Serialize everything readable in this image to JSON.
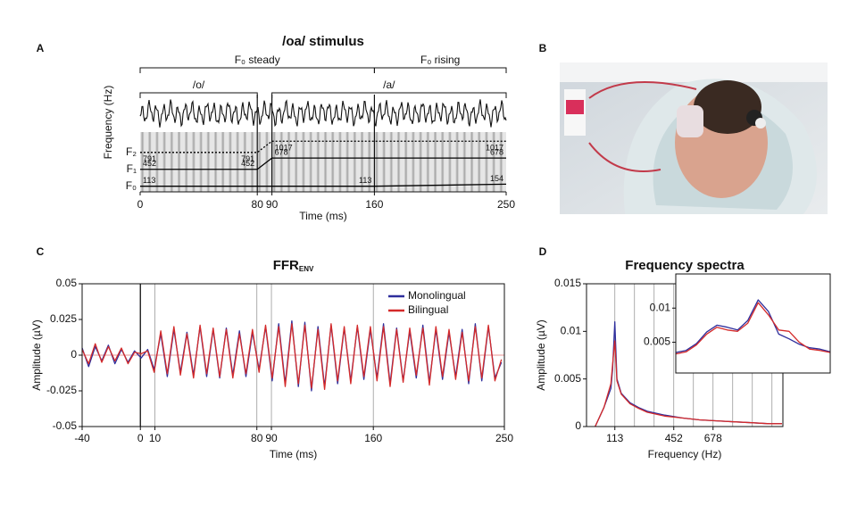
{
  "panel_labels": [
    "A",
    "B",
    "C",
    "D"
  ],
  "chart_data": [
    {
      "type": "formant",
      "title": "/oa/ stimulus",
      "xlabel": "Time (ms)",
      "ylabel": "Frequency (Hz)",
      "xlim": [
        0,
        250
      ],
      "xticks": [
        0,
        80,
        90,
        160,
        250
      ],
      "ylim": [
        0,
        1200
      ],
      "vlines": [
        80,
        90,
        160
      ],
      "brackets": [
        {
          "label": "F₀ steady",
          "from": 0,
          "to": 160
        },
        {
          "label": "F₀ rising",
          "from": 160,
          "to": 250
        }
      ],
      "segments": [
        {
          "label": "/o/",
          "from": 0,
          "to": 80
        },
        {
          "label": "/a/",
          "from": 90,
          "to": 250
        }
      ],
      "series": [
        {
          "name": "F₀",
          "color": "#000000",
          "x": [
            0,
            160,
            250
          ],
          "values": [
            113,
            113,
            154
          ]
        },
        {
          "name": "F₁",
          "color": "#000000",
          "x": [
            0,
            80,
            90,
            250
          ],
          "values": [
            452,
            452,
            678,
            678
          ]
        },
        {
          "name": "F₂",
          "color": "#000000",
          "dashed": true,
          "x": [
            0,
            80,
            90,
            250
          ],
          "values": [
            791,
            791,
            1017,
            1017
          ]
        }
      ]
    },
    {
      "type": "line",
      "title": "FFR",
      "title_sub": "ENV",
      "xlabel": "Time (ms)",
      "ylabel": "Amplitude (µV)",
      "xlim": [
        -40,
        250
      ],
      "xticks": [
        -40,
        0,
        10,
        80,
        90,
        160,
        250
      ],
      "ylim": [
        -0.05,
        0.05
      ],
      "yticks": [
        -0.05,
        -0.025,
        0,
        0.025,
        0.05
      ],
      "vlines": [
        0,
        10,
        80,
        90,
        160
      ],
      "hline": 0,
      "hline_color": "#e07070",
      "legend": "upper right",
      "x": [
        -40,
        -35.5,
        -31,
        -26.5,
        -22,
        -17.5,
        -13,
        -8.5,
        -4,
        0.5,
        5,
        9.5,
        14,
        18.5,
        23,
        27.5,
        32,
        36.5,
        41,
        45.5,
        50,
        54.5,
        59,
        63.5,
        68,
        72.5,
        77,
        81.5,
        86,
        90.5,
        95,
        99.5,
        104,
        108.5,
        113,
        117.5,
        122,
        126.5,
        131,
        135.5,
        140,
        144.5,
        149,
        153.5,
        158,
        162.5,
        167,
        171.5,
        176,
        180.5,
        185,
        189.5,
        194,
        198.5,
        203,
        207.5,
        212,
        216.5,
        221,
        225.5,
        230,
        234.5,
        239,
        243.5,
        248
      ],
      "series": [
        {
          "name": "Monolingual",
          "color": "#2e2e9c",
          "values": [
            0.005,
            -0.008,
            0.006,
            -0.004,
            0.007,
            -0.006,
            0.004,
            -0.005,
            0.003,
            -0.002,
            0.004,
            -0.01,
            0.015,
            -0.015,
            0.018,
            -0.012,
            0.016,
            -0.014,
            0.02,
            -0.015,
            0.018,
            -0.016,
            0.019,
            -0.014,
            0.017,
            -0.015,
            0.016,
            -0.01,
            0.02,
            -0.018,
            0.022,
            -0.02,
            0.024,
            -0.022,
            0.023,
            -0.025,
            0.02,
            -0.022,
            0.021,
            -0.02,
            0.019,
            -0.018,
            0.02,
            -0.017,
            0.018,
            -0.016,
            0.022,
            -0.02,
            0.019,
            -0.018,
            0.017,
            -0.016,
            0.021,
            -0.019,
            0.018,
            -0.017,
            0.016,
            -0.015,
            0.018,
            -0.02,
            0.022,
            -0.018,
            0.02,
            -0.016,
            -0.005
          ]
        },
        {
          "name": "Bilingual",
          "color": "#d42a2a",
          "values": [
            0.004,
            -0.006,
            0.008,
            -0.005,
            0.006,
            -0.004,
            0.005,
            -0.006,
            0.002,
            0.001,
            0.003,
            -0.012,
            0.017,
            -0.013,
            0.02,
            -0.014,
            0.015,
            -0.016,
            0.021,
            -0.013,
            0.019,
            -0.015,
            0.018,
            -0.016,
            0.015,
            -0.013,
            0.018,
            -0.012,
            0.021,
            -0.016,
            0.02,
            -0.022,
            0.022,
            -0.02,
            0.021,
            -0.023,
            0.018,
            -0.024,
            0.022,
            -0.018,
            0.02,
            -0.02,
            0.021,
            -0.015,
            0.02,
            -0.018,
            0.02,
            -0.022,
            0.018,
            -0.019,
            0.019,
            -0.014,
            0.019,
            -0.021,
            0.02,
            -0.015,
            0.018,
            -0.017,
            0.016,
            -0.018,
            0.02,
            -0.016,
            0.021,
            -0.018,
            -0.003
          ]
        }
      ]
    },
    {
      "type": "line",
      "title": "Frequency spectra",
      "xlabel": "Frequency (Hz)",
      "ylabel": "Amplitude (µV)",
      "xlim": [
        -50,
        1080
      ],
      "xticks": [
        113,
        452,
        678
      ],
      "ylim": [
        0,
        0.015
      ],
      "yticks": [
        0,
        0.005,
        0.01,
        0.015
      ],
      "vlines": [
        113,
        226,
        339,
        452,
        565,
        678,
        791,
        904,
        1017
      ],
      "x": [
        0,
        50,
        90,
        100,
        113,
        125,
        150,
        200,
        250,
        300,
        400,
        500,
        600,
        700,
        800,
        900,
        1000,
        1075
      ],
      "series": [
        {
          "name": "Monolingual",
          "color": "#2e2e9c",
          "values": [
            0,
            0.002,
            0.004,
            0.006,
            0.011,
            0.005,
            0.0035,
            0.0025,
            0.002,
            0.0016,
            0.0012,
            0.0009,
            0.0007,
            0.0006,
            0.0005,
            0.0004,
            0.0003,
            0.0003
          ]
        },
        {
          "name": "Bilingual",
          "color": "#d42a2a",
          "values": [
            0,
            0.002,
            0.0045,
            0.0065,
            0.009,
            0.0048,
            0.0034,
            0.0024,
            0.0019,
            0.0015,
            0.0011,
            0.0009,
            0.0007,
            0.0006,
            0.0005,
            0.0004,
            0.0003,
            0.0003
          ]
        }
      ]
    },
    {
      "type": "line",
      "xlim": [
        60,
        180
      ],
      "ylim": [
        0.0005,
        0.015
      ],
      "yticks": [
        0.005,
        0.01
      ],
      "x": [
        60,
        68,
        76,
        84,
        92,
        100,
        108,
        116,
        124,
        132,
        140,
        148,
        156,
        164,
        172,
        180
      ],
      "series": [
        {
          "name": "Monolingual",
          "color": "#2e2e9c",
          "values": [
            0.0035,
            0.0038,
            0.0048,
            0.0065,
            0.0075,
            0.0072,
            0.0068,
            0.0082,
            0.0112,
            0.0095,
            0.0062,
            0.0055,
            0.0047,
            0.0042,
            0.004,
            0.0036
          ]
        },
        {
          "name": "Bilingual",
          "color": "#d42a2a",
          "values": [
            0.0033,
            0.0036,
            0.0046,
            0.0062,
            0.0072,
            0.0068,
            0.0066,
            0.0078,
            0.0108,
            0.009,
            0.0068,
            0.0066,
            0.005,
            0.004,
            0.0038,
            0.0035
          ]
        }
      ]
    }
  ]
}
